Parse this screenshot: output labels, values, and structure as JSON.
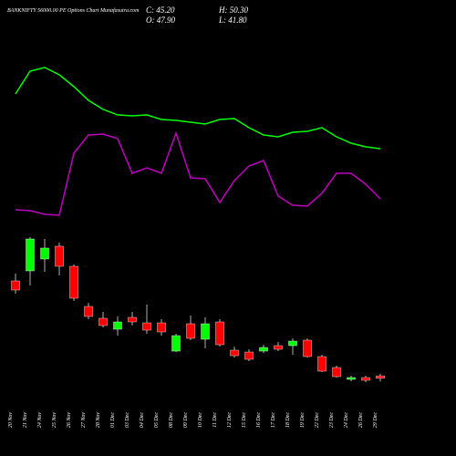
{
  "header": {
    "title": "BANKNIFTY 56000.00 PE Options Chart Munafasutra.com",
    "close": "C: 45.20",
    "high": "H: 50.30",
    "open": "O: 47.90",
    "low": "L: 41.80"
  },
  "chart_data": [
    {
      "type": "line",
      "ylim": [
        0,
        200
      ],
      "series": [
        {
          "name": "upper",
          "color": "#00ff00",
          "values": [
            147,
            172,
            176,
            168,
            155,
            140,
            130,
            124,
            123,
            124,
            119,
            118,
            116,
            114,
            119,
            120,
            110,
            102,
            100,
            105,
            106,
            110,
            100,
            93,
            89,
            87
          ]
        },
        {
          "name": "lower",
          "color": "#c000c0",
          "values": [
            20,
            19,
            15,
            14,
            82,
            102,
            103,
            98,
            60,
            66,
            60,
            104,
            55,
            54,
            28,
            52,
            68,
            74,
            35,
            25,
            24,
            38,
            60,
            60,
            48,
            32
          ]
        }
      ]
    },
    {
      "type": "candlestick",
      "ylim": [
        30,
        210
      ],
      "up_color": "#00ff00",
      "down_color": "#ff0000",
      "categories": [
        "20 Nov",
        "21 Nov",
        "24 Nov",
        "25 Nov",
        "26 Nov",
        "27 Nov",
        "28 Nov",
        "01 Dec",
        "03 Dec",
        "04 Dec",
        "05 Dec",
        "08 Dec",
        "09 Dec",
        "10 Dec",
        "11 Dec",
        "12 Dec",
        "15 Dec",
        "16 Dec",
        "17 Dec",
        "18 Dec",
        "19 Dec",
        "22 Dec",
        "23 Dec",
        "24 Dec",
        "26 Dec",
        "29 Dec"
      ],
      "open": [
        152,
        163,
        176,
        190,
        168,
        124,
        111,
        99,
        112,
        106,
        106,
        75,
        105,
        88,
        107,
        76,
        74,
        75,
        81,
        81,
        87,
        69,
        57,
        44,
        46,
        47.9
      ],
      "high": [
        160,
        200,
        198,
        194,
        170,
        128,
        118,
        113,
        118,
        126,
        110,
        94,
        114,
        112,
        110,
        80,
        77,
        82,
        85,
        89,
        89,
        71,
        59,
        48,
        48,
        50.3
      ],
      "low": [
        138,
        147,
        162,
        158,
        130,
        110,
        101,
        92,
        103,
        94,
        92,
        74,
        87,
        78,
        80,
        68,
        64,
        73,
        75,
        71,
        68,
        52,
        46,
        42,
        41,
        41.8
      ],
      "close": [
        142,
        198,
        188,
        168,
        133,
        113,
        103,
        107,
        107,
        98,
        96,
        92,
        89,
        105,
        82,
        70,
        66,
        79,
        77,
        86,
        69,
        53,
        47,
        46,
        43,
        45.2
      ]
    }
  ]
}
